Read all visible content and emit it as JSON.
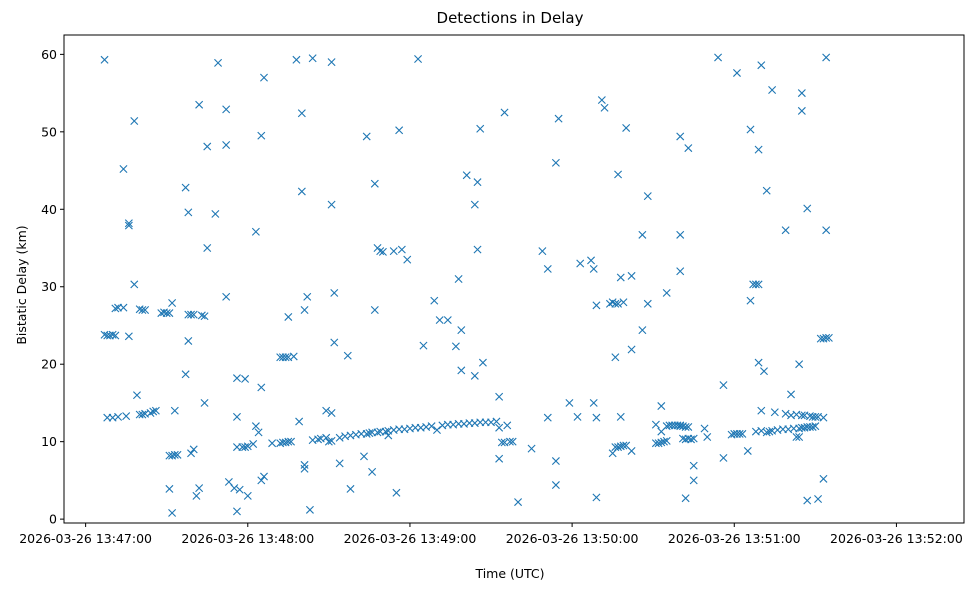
{
  "chart_data": {
    "type": "scatter",
    "title": "Detections in Delay",
    "xlabel": "Time (UTC)",
    "ylabel": "Bistatic Delay (km)",
    "marker": "x",
    "color": "#1f77b4",
    "grid": false,
    "legend": "none",
    "x_ticks": [
      "2026-03-26 13:47:00",
      "2026-03-26 13:48:00",
      "2026-03-26 13:49:00",
      "2026-03-26 13:50:00",
      "2026-03-26 13:51:00",
      "2026-03-26 13:52:00"
    ],
    "y_ticks": [
      "0",
      "10",
      "20",
      "30",
      "40",
      "50",
      "60"
    ],
    "xlim": [
      "2026-03-26 13:46:52",
      "2026-03-26 13:52:25"
    ],
    "ylim": [
      -0.5,
      62.5
    ],
    "points": [
      [
        "13:47:07",
        59.3
      ],
      [
        "13:47:07",
        23.8
      ],
      [
        "13:47:08",
        23.7
      ],
      [
        "13:47:09",
        23.7
      ],
      [
        "13:47:10",
        23.8
      ],
      [
        "13:47:11",
        23.7
      ],
      [
        "13:47:08",
        13.1
      ],
      [
        "13:47:10",
        13.1
      ],
      [
        "13:47:11",
        27.2
      ],
      [
        "13:47:12",
        27.3
      ],
      [
        "13:47:12",
        13.2
      ],
      [
        "13:47:14",
        27.3
      ],
      [
        "13:47:14",
        45.2
      ],
      [
        "13:47:15",
        13.3
      ],
      [
        "13:47:16",
        23.6
      ],
      [
        "13:47:16",
        38.2
      ],
      [
        "13:47:16",
        37.9
      ],
      [
        "13:47:18",
        51.4
      ],
      [
        "13:47:18",
        30.3
      ],
      [
        "13:47:19",
        16.0
      ],
      [
        "13:47:20",
        13.5
      ],
      [
        "13:47:20",
        27.1
      ],
      [
        "13:47:21",
        27.0
      ],
      [
        "13:47:21",
        13.5
      ],
      [
        "13:47:22",
        27.0
      ],
      [
        "13:47:22",
        13.6
      ],
      [
        "13:47:24",
        13.7
      ],
      [
        "13:47:25",
        13.9
      ],
      [
        "13:47:26",
        14.0
      ],
      [
        "13:47:28",
        26.6
      ],
      [
        "13:47:29",
        26.7
      ],
      [
        "13:47:30",
        26.6
      ],
      [
        "13:47:31",
        26.6
      ],
      [
        "13:47:31",
        8.2
      ],
      [
        "13:47:32",
        8.2
      ],
      [
        "13:47:33",
        8.3
      ],
      [
        "13:47:34",
        8.3
      ],
      [
        "13:47:31",
        3.9
      ],
      [
        "13:47:32",
        0.8
      ],
      [
        "13:47:32",
        27.9
      ],
      [
        "13:47:33",
        14.0
      ],
      [
        "13:47:37",
        42.8
      ],
      [
        "13:47:37",
        18.7
      ],
      [
        "13:47:38",
        23.0
      ],
      [
        "13:47:38",
        39.6
      ],
      [
        "13:47:38",
        26.4
      ],
      [
        "13:47:39",
        26.4
      ],
      [
        "13:47:40",
        26.4
      ],
      [
        "13:47:39",
        8.5
      ],
      [
        "13:47:40",
        9.0
      ],
      [
        "13:47:41",
        3.0
      ],
      [
        "13:47:42",
        4.0
      ],
      [
        "13:47:42",
        53.5
      ],
      [
        "13:47:43",
        26.3
      ],
      [
        "13:47:44",
        26.2
      ],
      [
        "13:47:44",
        15.0
      ],
      [
        "13:47:45",
        48.1
      ],
      [
        "13:47:45",
        35.0
      ],
      [
        "13:47:48",
        39.4
      ],
      [
        "13:47:49",
        58.9
      ],
      [
        "13:47:52",
        52.9
      ],
      [
        "13:47:52",
        48.3
      ],
      [
        "13:47:52",
        28.7
      ],
      [
        "13:47:53",
        4.8
      ],
      [
        "13:47:55",
        4.0
      ],
      [
        "13:47:56",
        1.0
      ],
      [
        "13:47:56",
        13.2
      ],
      [
        "13:47:56",
        18.2
      ],
      [
        "13:47:56",
        9.3
      ],
      [
        "13:47:57",
        3.8
      ],
      [
        "13:47:58",
        9.3
      ],
      [
        "13:47:59",
        9.3
      ],
      [
        "13:48:00",
        9.4
      ],
      [
        "13:47:59",
        18.1
      ],
      [
        "13:48:00",
        3.0
      ],
      [
        "13:48:02",
        9.7
      ],
      [
        "13:48:03",
        37.1
      ],
      [
        "13:48:03",
        12.0
      ],
      [
        "13:48:04",
        11.2
      ],
      [
        "13:48:05",
        49.5
      ],
      [
        "13:48:05",
        17.0
      ],
      [
        "13:48:05",
        5.0
      ],
      [
        "13:48:06",
        5.5
      ],
      [
        "13:48:06",
        57.0
      ],
      [
        "13:48:09",
        9.8
      ],
      [
        "13:48:12",
        9.8
      ],
      [
        "13:48:13",
        9.9
      ],
      [
        "13:48:14",
        9.9
      ],
      [
        "13:48:15",
        10.0
      ],
      [
        "13:48:16",
        10.0
      ],
      [
        "13:48:12",
        20.9
      ],
      [
        "13:48:13",
        20.9
      ],
      [
        "13:48:14",
        20.9
      ],
      [
        "13:48:15",
        20.9
      ],
      [
        "13:48:17",
        21.0
      ],
      [
        "13:48:15",
        26.1
      ],
      [
        "13:48:18",
        59.3
      ],
      [
        "13:48:19",
        12.6
      ],
      [
        "13:48:20",
        42.3
      ],
      [
        "13:48:20",
        52.4
      ],
      [
        "13:48:21",
        6.5
      ],
      [
        "13:48:21",
        27.0
      ],
      [
        "13:48:21",
        7.0
      ],
      [
        "13:48:22",
        28.7
      ],
      [
        "13:48:23",
        1.2
      ],
      [
        "13:48:24",
        59.5
      ],
      [
        "13:48:24",
        10.2
      ],
      [
        "13:48:26",
        10.3
      ],
      [
        "13:48:27",
        10.4
      ],
      [
        "13:48:29",
        10.5
      ],
      [
        "13:48:29",
        14.0
      ],
      [
        "13:48:30",
        10.0
      ],
      [
        "13:48:31",
        13.7
      ],
      [
        "13:48:31",
        10.1
      ],
      [
        "13:48:31",
        40.6
      ],
      [
        "13:48:31",
        59.0
      ],
      [
        "13:48:32",
        29.2
      ],
      [
        "13:48:32",
        22.8
      ],
      [
        "13:48:34",
        10.5
      ],
      [
        "13:48:34",
        7.2
      ],
      [
        "13:48:36",
        10.7
      ],
      [
        "13:48:37",
        21.1
      ],
      [
        "13:48:38",
        10.8
      ],
      [
        "13:48:38",
        3.9
      ],
      [
        "13:48:40",
        10.9
      ],
      [
        "13:48:42",
        11.0
      ],
      [
        "13:48:44",
        11.0
      ],
      [
        "13:48:43",
        8.1
      ],
      [
        "13:48:44",
        49.4
      ],
      [
        "13:48:45",
        11.1
      ],
      [
        "13:48:46",
        11.2
      ],
      [
        "13:48:46",
        6.1
      ],
      [
        "13:48:48",
        11.2
      ],
      [
        "13:48:47",
        43.3
      ],
      [
        "13:48:48",
        35.0
      ],
      [
        "13:48:47",
        27.0
      ],
      [
        "13:48:49",
        34.6
      ],
      [
        "13:48:50",
        34.5
      ],
      [
        "13:48:49",
        11.3
      ],
      [
        "13:48:51",
        11.3
      ],
      [
        "13:48:52",
        10.8
      ],
      [
        "13:48:52",
        11.4
      ],
      [
        "13:48:54",
        11.5
      ],
      [
        "13:48:54",
        34.6
      ],
      [
        "13:48:55",
        3.4
      ],
      [
        "13:48:56",
        11.6
      ],
      [
        "13:48:56",
        50.2
      ],
      [
        "13:48:57",
        34.8
      ],
      [
        "13:48:58",
        11.6
      ],
      [
        "13:48:59",
        33.5
      ],
      [
        "13:49:00",
        11.7
      ],
      [
        "13:49:02",
        11.8
      ],
      [
        "13:49:03",
        59.4
      ],
      [
        "13:49:04",
        11.8
      ],
      [
        "13:49:05",
        22.4
      ],
      [
        "13:49:06",
        11.9
      ],
      [
        "13:49:08",
        12.0
      ],
      [
        "13:49:09",
        28.2
      ],
      [
        "13:49:10",
        11.5
      ],
      [
        "13:49:11",
        25.7
      ],
      [
        "13:49:12",
        12.1
      ],
      [
        "13:49:14",
        25.7
      ],
      [
        "13:49:14",
        12.2
      ],
      [
        "13:49:16",
        12.2
      ],
      [
        "13:49:17",
        22.3
      ],
      [
        "13:49:18",
        12.3
      ],
      [
        "13:49:18",
        31.0
      ],
      [
        "13:49:19",
        19.2
      ],
      [
        "13:49:19",
        24.4
      ],
      [
        "13:49:20",
        12.3
      ],
      [
        "13:49:21",
        44.4
      ],
      [
        "13:49:22",
        12.4
      ],
      [
        "13:49:24",
        12.4
      ],
      [
        "13:49:24",
        18.5
      ],
      [
        "13:49:24",
        40.6
      ],
      [
        "13:49:25",
        34.8
      ],
      [
        "13:49:25",
        43.5
      ],
      [
        "13:49:26",
        50.4
      ],
      [
        "13:49:26",
        12.5
      ],
      [
        "13:49:27",
        20.2
      ],
      [
        "13:49:28",
        12.5
      ],
      [
        "13:49:30",
        12.5
      ],
      [
        "13:49:32",
        12.6
      ],
      [
        "13:49:33",
        15.8
      ],
      [
        "13:49:33",
        11.8
      ],
      [
        "13:49:34",
        9.9
      ],
      [
        "13:49:33",
        7.8
      ],
      [
        "13:49:35",
        9.9
      ],
      [
        "13:49:35",
        52.5
      ],
      [
        "13:49:36",
        12.1
      ],
      [
        "13:49:37",
        10.0
      ],
      [
        "13:49:38",
        10.0
      ],
      [
        "13:49:40",
        2.2
      ],
      [
        "13:49:45",
        9.1
      ],
      [
        "13:49:49",
        34.6
      ],
      [
        "13:49:51",
        32.3
      ],
      [
        "13:49:51",
        13.1
      ],
      [
        "13:49:54",
        7.5
      ],
      [
        "13:49:54",
        4.4
      ],
      [
        "13:49:54",
        46.0
      ],
      [
        "13:49:55",
        51.7
      ],
      [
        "13:49:59",
        15.0
      ],
      [
        "13:50:02",
        13.2
      ],
      [
        "13:50:03",
        33.0
      ],
      [
        "13:50:07",
        33.4
      ],
      [
        "13:50:08",
        32.3
      ],
      [
        "13:50:08",
        15.0
      ],
      [
        "13:50:09",
        2.8
      ],
      [
        "13:50:09",
        27.6
      ],
      [
        "13:50:09",
        13.1
      ],
      [
        "13:50:11",
        54.1
      ],
      [
        "13:50:12",
        53.1
      ],
      [
        "13:50:14",
        27.8
      ],
      [
        "13:50:15",
        28.0
      ],
      [
        "13:50:16",
        27.8
      ],
      [
        "13:50:17",
        27.8
      ],
      [
        "13:50:15",
        8.5
      ],
      [
        "13:50:16",
        9.3
      ],
      [
        "13:50:17",
        9.3
      ],
      [
        "13:50:18",
        9.4
      ],
      [
        "13:50:16",
        20.9
      ],
      [
        "13:50:17",
        44.5
      ],
      [
        "13:50:18",
        13.2
      ],
      [
        "13:50:18",
        31.2
      ],
      [
        "13:50:19",
        28.0
      ],
      [
        "13:50:19",
        9.5
      ],
      [
        "13:50:20",
        9.5
      ],
      [
        "13:50:20",
        50.5
      ],
      [
        "13:50:22",
        21.9
      ],
      [
        "13:50:22",
        31.4
      ],
      [
        "13:50:22",
        8.8
      ],
      [
        "13:50:26",
        36.7
      ],
      [
        "13:50:26",
        24.4
      ],
      [
        "13:50:28",
        27.8
      ],
      [
        "13:50:28",
        41.7
      ],
      [
        "13:50:31",
        12.2
      ],
      [
        "13:50:31",
        9.8
      ],
      [
        "13:50:32",
        9.8
      ],
      [
        "13:50:33",
        9.9
      ],
      [
        "13:50:34",
        10.0
      ],
      [
        "13:50:35",
        10.1
      ],
      [
        "13:50:33",
        14.6
      ],
      [
        "13:50:33",
        11.3
      ],
      [
        "13:50:35",
        12.0
      ],
      [
        "13:50:35",
        29.2
      ],
      [
        "13:50:36",
        12.1
      ],
      [
        "13:50:37",
        12.1
      ],
      [
        "13:50:38",
        12.1
      ],
      [
        "13:50:39",
        12.1
      ],
      [
        "13:50:40",
        12.0
      ],
      [
        "13:50:41",
        12.0
      ],
      [
        "13:50:42",
        11.9
      ],
      [
        "13:50:43",
        11.9
      ],
      [
        "13:50:40",
        12.1
      ],
      [
        "13:50:40",
        49.4
      ],
      [
        "13:50:40",
        36.7
      ],
      [
        "13:50:40",
        32.0
      ],
      [
        "13:50:41",
        10.4
      ],
      [
        "13:50:42",
        10.3
      ],
      [
        "13:50:42",
        2.7
      ],
      [
        "13:50:43",
        10.4
      ],
      [
        "13:50:43",
        47.9
      ],
      [
        "13:50:44",
        10.3
      ],
      [
        "13:50:45",
        10.4
      ],
      [
        "13:50:45",
        6.9
      ],
      [
        "13:50:45",
        5.0
      ],
      [
        "13:50:49",
        11.7
      ],
      [
        "13:50:50",
        10.6
      ],
      [
        "13:50:54",
        59.6
      ],
      [
        "13:50:56",
        17.3
      ],
      [
        "13:50:56",
        7.9
      ],
      [
        "13:50:59",
        10.9
      ],
      [
        "13:51:00",
        11.0
      ],
      [
        "13:51:01",
        11.0
      ],
      [
        "13:51:02",
        11.0
      ],
      [
        "13:51:03",
        11.0
      ],
      [
        "13:51:01",
        57.6
      ],
      [
        "13:51:05",
        8.8
      ],
      [
        "13:51:06",
        28.2
      ],
      [
        "13:51:06",
        50.3
      ],
      [
        "13:51:07",
        30.3
      ],
      [
        "13:51:08",
        30.3
      ],
      [
        "13:51:09",
        30.3
      ],
      [
        "13:51:08",
        11.3
      ],
      [
        "13:51:09",
        20.2
      ],
      [
        "13:51:09",
        47.7
      ],
      [
        "13:51:10",
        58.6
      ],
      [
        "13:51:10",
        14.0
      ],
      [
        "13:51:10",
        11.4
      ],
      [
        "13:51:11",
        19.1
      ],
      [
        "13:51:12",
        11.2
      ],
      [
        "13:51:12",
        42.4
      ],
      [
        "13:51:13",
        11.3
      ],
      [
        "13:51:14",
        11.4
      ],
      [
        "13:51:14",
        55.4
      ],
      [
        "13:51:15",
        13.8
      ],
      [
        "13:51:16",
        11.5
      ],
      [
        "13:51:18",
        11.6
      ],
      [
        "13:51:19",
        37.3
      ],
      [
        "13:51:19",
        13.6
      ],
      [
        "13:51:20",
        11.6
      ],
      [
        "13:51:21",
        16.1
      ],
      [
        "13:51:21",
        13.4
      ],
      [
        "13:51:22",
        11.7
      ],
      [
        "13:51:23",
        10.6
      ],
      [
        "13:51:23",
        13.5
      ],
      [
        "13:51:24",
        11.7
      ],
      [
        "13:51:24",
        10.6
      ],
      [
        "13:51:24",
        20.0
      ],
      [
        "13:51:25",
        13.4
      ],
      [
        "13:51:25",
        11.8
      ],
      [
        "13:51:25",
        52.7
      ],
      [
        "13:51:25",
        55.0
      ],
      [
        "13:51:26",
        13.4
      ],
      [
        "13:51:26",
        11.8
      ],
      [
        "13:51:27",
        11.9
      ],
      [
        "13:51:27",
        40.1
      ],
      [
        "13:51:27",
        2.4
      ],
      [
        "13:51:28",
        13.3
      ],
      [
        "13:51:28",
        11.9
      ],
      [
        "13:51:29",
        13.2
      ],
      [
        "13:51:29",
        11.9
      ],
      [
        "13:51:30",
        13.2
      ],
      [
        "13:51:30",
        12.0
      ],
      [
        "13:51:31",
        13.2
      ],
      [
        "13:51:31",
        2.6
      ],
      [
        "13:51:32",
        23.3
      ],
      [
        "13:51:33",
        23.3
      ],
      [
        "13:51:33",
        13.1
      ],
      [
        "13:51:34",
        23.4
      ],
      [
        "13:51:35",
        23.4
      ],
      [
        "13:51:33",
        5.2
      ],
      [
        "13:51:34",
        37.3
      ],
      [
        "13:51:34",
        59.6
      ]
    ]
  }
}
